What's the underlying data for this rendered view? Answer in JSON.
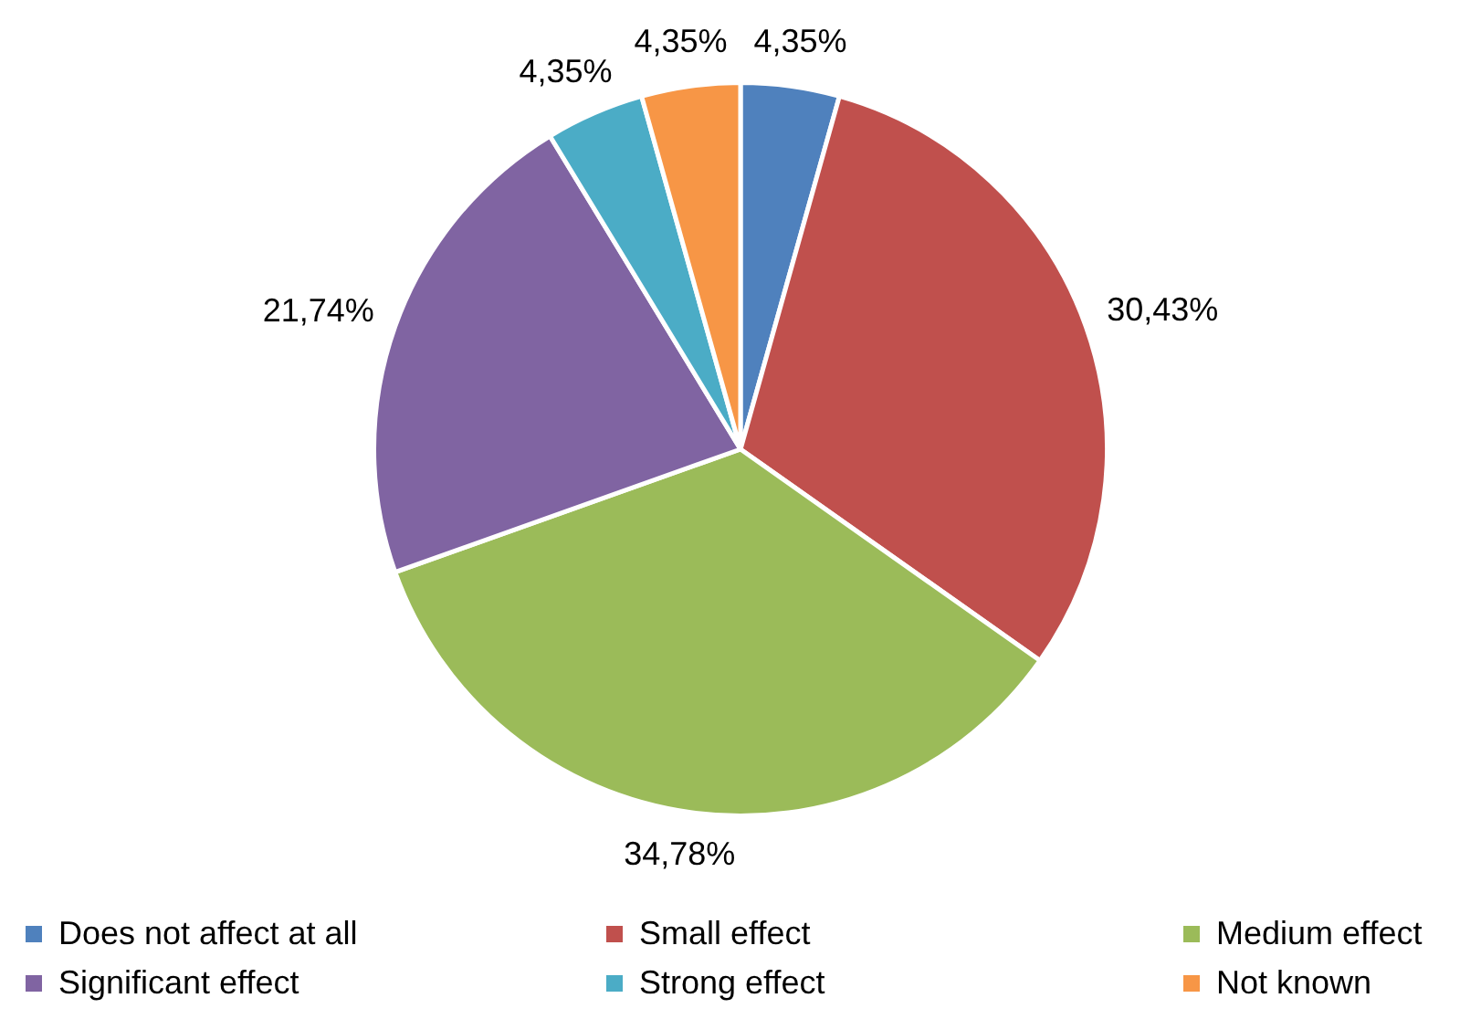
{
  "chart_data": {
    "type": "pie",
    "categories": [
      "Does not affect at all",
      "Small effect",
      "Medium effect",
      "Significant effect",
      "Strong effect",
      "Not known"
    ],
    "values": [
      4.35,
      30.43,
      34.78,
      21.74,
      4.35,
      4.35
    ],
    "value_labels": [
      "4,35%",
      "30,43%",
      "34,78%",
      "21,74%",
      "4,35%",
      "4,35%"
    ],
    "colors": [
      "#4f81bd",
      "#c0504d",
      "#9bbb59",
      "#8064a2",
      "#4bacc6",
      "#f79646"
    ],
    "legend": "bottom"
  }
}
